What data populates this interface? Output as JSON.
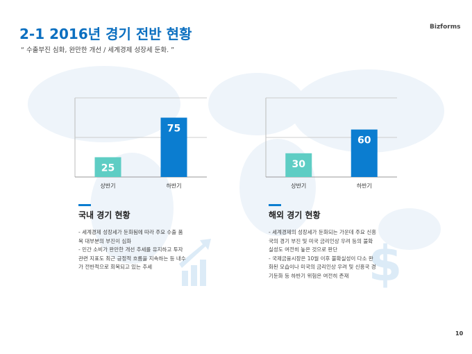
{
  "header": {
    "title": "2-1 2016년 경기 전반 현황",
    "brand": "Bizforms",
    "subtitle": "“ 수출부진 심화, 완만한 개선 / 세계경제 성장세 둔화. ”"
  },
  "chart_data": [
    {
      "type": "bar",
      "categories": [
        "상반기",
        "하반기"
      ],
      "values": [
        25,
        75
      ],
      "colors": [
        "#5ecdc4",
        "#0b7dd0"
      ],
      "ylim": [
        0,
        100
      ],
      "yticks": [
        50,
        100
      ],
      "grid": true
    },
    {
      "type": "bar",
      "categories": [
        "상반기",
        "하반기"
      ],
      "values": [
        30,
        60
      ],
      "colors": [
        "#5ecdc4",
        "#0b7dd0"
      ],
      "ylim": [
        0,
        100
      ],
      "yticks": [
        50,
        100
      ],
      "grid": true
    }
  ],
  "sections": [
    {
      "heading": "국내 경기 현황",
      "lines": [
        "- 세계경제 성장세가 둔화됨에 따라 주요 수출 품",
        "목 대부분의 부진이 심화",
        "- 민간 소비가 완만한 개선 추세를 유지하고 투자",
        "관련 지표도 최근 긍정적 흐름을 지속하는 등 내수",
        "가 전반적으로 회복되고 있는 추세"
      ]
    },
    {
      "heading": "해외 경기 현황",
      "lines": [
        "- 세계경제의 성장세가 둔화되는 가운데 주요 신흥",
        "국의 경기 부진 및 미국 금리인상 우려 등의 불확",
        "실성도 여전히 높은 것으로 판단",
        "- 국제금융시장은 10월 이후 불확실성이 다소 완",
        "화된 모습이나 미국의 금리인상 우려 및 신흥국 경",
        "기둔화 등 하반기 위험은 여전히 존재"
      ]
    }
  ],
  "page_number": "10"
}
